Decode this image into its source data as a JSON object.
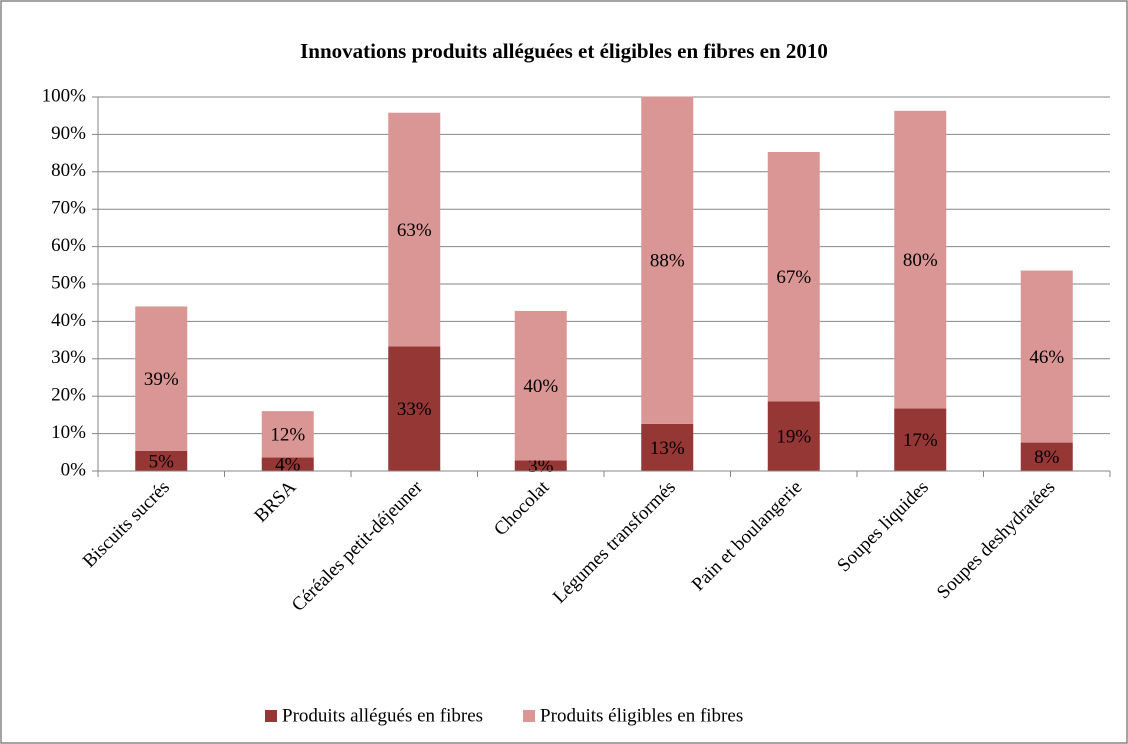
{
  "chart_data": {
    "type": "bar",
    "stacked": true,
    "title": "Innovations produits alléguées et éligibles en fibres en 2010",
    "categories": [
      "Biscuits sucrés",
      "BRSA",
      "Céréales petit-déjeuner",
      "Chocolat",
      "Légumes transformés",
      "Pain et boulangerie",
      "Soupes liquides",
      "Soupes deshydratées"
    ],
    "series": [
      {
        "name": "Produits allégués en fibres",
        "color": "#953735",
        "values": [
          5.4,
          3.6,
          33.3,
          2.8,
          12.6,
          18.6,
          16.7,
          7.6
        ],
        "value_labels": [
          "5%",
          "4%",
          "33%",
          "3%",
          "13%",
          "19%",
          "17%",
          "8%"
        ]
      },
      {
        "name": "Produits éligibles en fibres",
        "color": "#d99694",
        "values": [
          38.6,
          12.4,
          62.5,
          40.0,
          87.5,
          66.7,
          79.6,
          46.0
        ],
        "value_labels": [
          "39%",
          "12%",
          "63%",
          "40%",
          "88%",
          "67%",
          "80%",
          "46%"
        ]
      }
    ],
    "ylim": [
      0,
      100
    ],
    "yticks": [
      {
        "value": 0,
        "label": "0%"
      },
      {
        "value": 10,
        "label": "10%"
      },
      {
        "value": 20,
        "label": "20%"
      },
      {
        "value": 30,
        "label": "30%"
      },
      {
        "value": 40,
        "label": "40%"
      },
      {
        "value": 50,
        "label": "50%"
      },
      {
        "value": 60,
        "label": "60%"
      },
      {
        "value": 70,
        "label": "70%"
      },
      {
        "value": 80,
        "label": "80%"
      },
      {
        "value": 90,
        "label": "90%"
      },
      {
        "value": 100,
        "label": "100%"
      }
    ],
    "grid": true,
    "legend": "bottom"
  }
}
